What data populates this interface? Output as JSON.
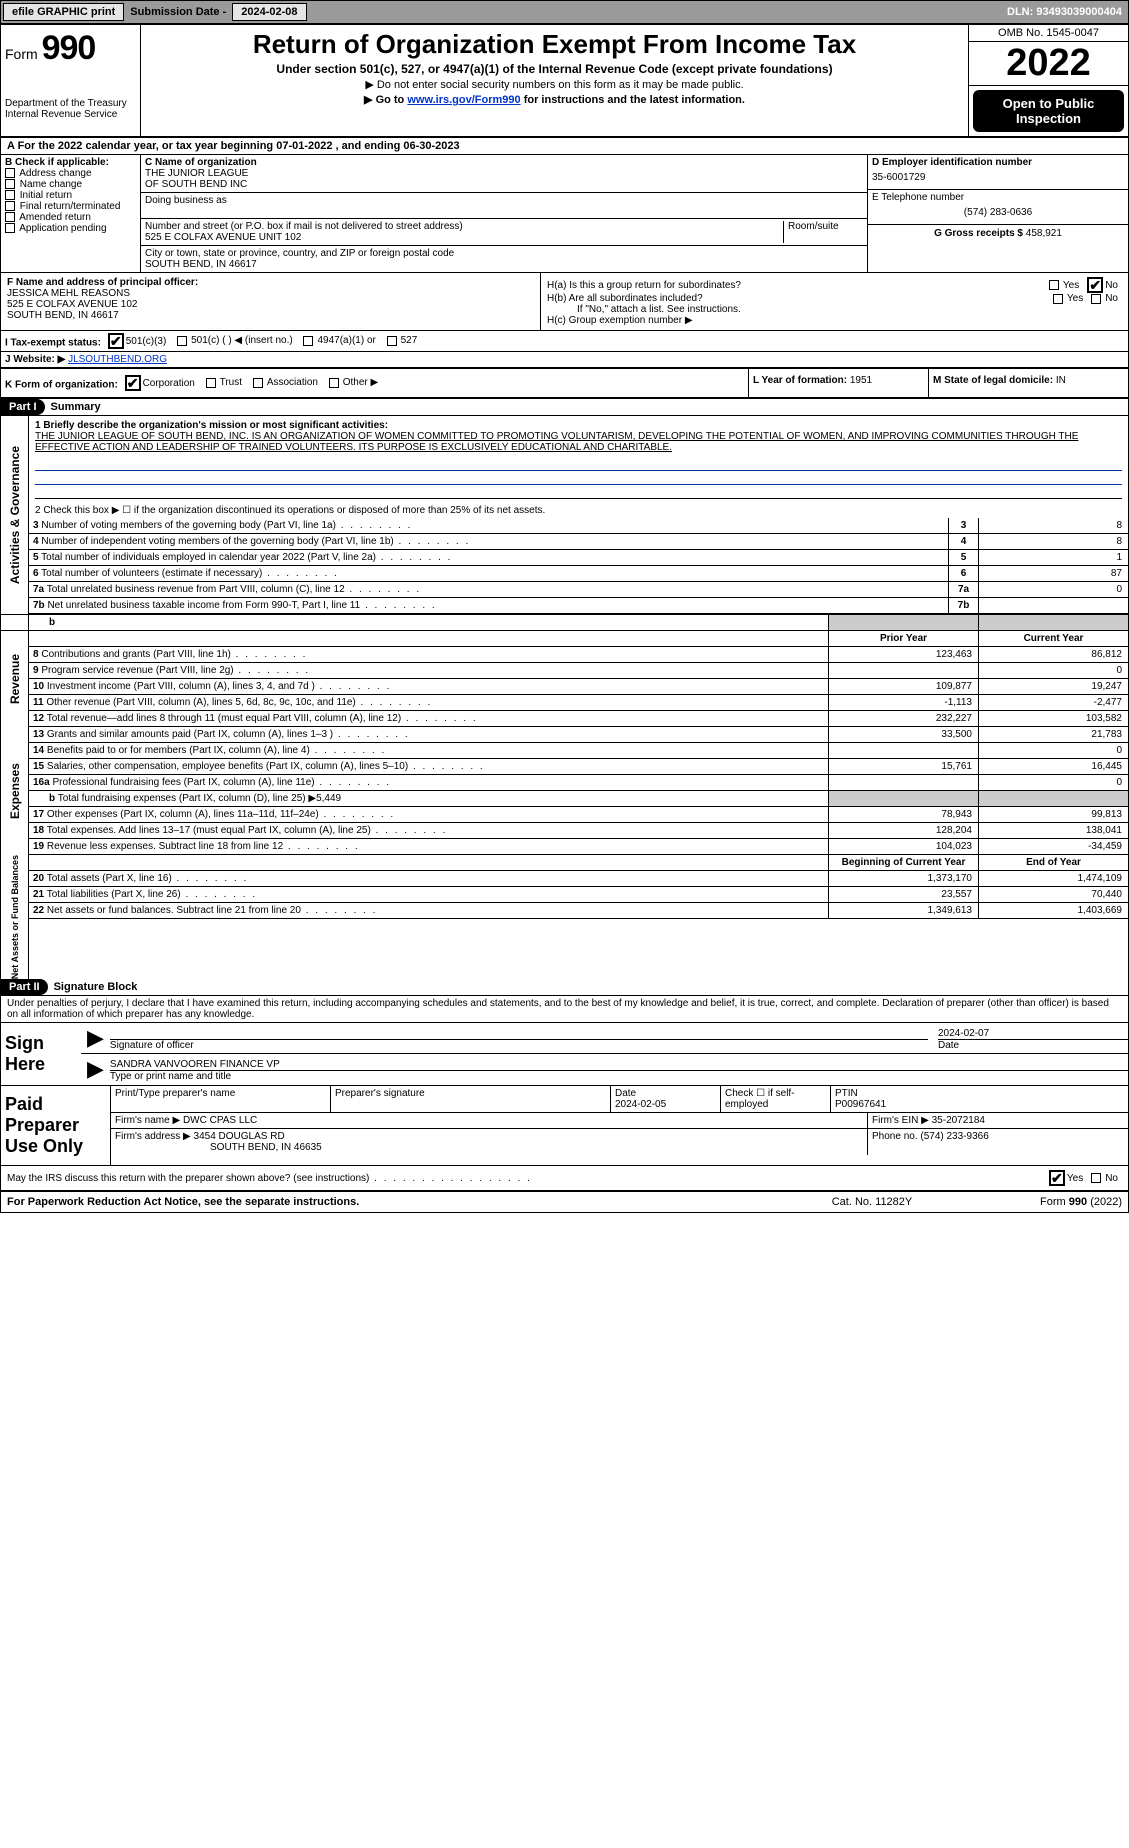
{
  "topbar": {
    "efile": "efile GRAPHIC print",
    "submission_label": "Submission Date - ",
    "submission_date": "2024-02-08",
    "dln_label": "DLN: ",
    "dln": "93493039000404"
  },
  "header": {
    "form_prefix": "Form",
    "form_number": "990",
    "title": "Return of Organization Exempt From Income Tax",
    "subtitle": "Under section 501(c), 527, or 4947(a)(1) of the Internal Revenue Code (except private foundations)",
    "note1": "▶ Do not enter social security numbers on this form as it may be made public.",
    "note2_pre": "▶ Go to ",
    "note2_link": "www.irs.gov/Form990",
    "note2_post": " for instructions and the latest information.",
    "dept": "Department of the Treasury",
    "irs": "Internal Revenue Service",
    "omb": "OMB No. 1545-0047",
    "year": "2022",
    "open": "Open to Public Inspection"
  },
  "period": {
    "text_pre": "A For the 2022 calendar year, or tax year beginning ",
    "begin": "07-01-2022",
    "mid": "   , and ending ",
    "end": "06-30-2023"
  },
  "boxB": {
    "title": "B Check if applicable:",
    "items": [
      "Address change",
      "Name change",
      "Initial return",
      "Final return/terminated",
      "Amended return",
      "Application pending"
    ]
  },
  "boxC": {
    "name_label": "C Name of organization",
    "name1": "THE JUNIOR LEAGUE",
    "name2": "OF SOUTH BEND INC",
    "dba_label": "Doing business as",
    "addr_label": "Number and street (or P.O. box if mail is not delivered to street address)",
    "room_label": "Room/suite",
    "addr": "525 E COLFAX AVENUE UNIT 102",
    "city_label": "City or town, state or province, country, and ZIP or foreign postal code",
    "city": "SOUTH BEND, IN  46617"
  },
  "boxD": {
    "label": "D Employer identification number",
    "ein": "35-6001729",
    "phone_label": "E Telephone number",
    "phone": "(574) 283-0636",
    "gross_label": "G Gross receipts $ ",
    "gross": "458,921"
  },
  "boxF": {
    "label": "F  Name and address of principal officer:",
    "name": "JESSICA MEHL REASONS",
    "addr1": "525 E COLFAX AVENUE 102",
    "addr2": "SOUTH BEND, IN  46617"
  },
  "boxH": {
    "a_label": "H(a)  Is this a group return for subordinates?",
    "b_label": "H(b)  Are all subordinates included?",
    "ifno": "If \"No,\" attach a list. See instructions.",
    "c_label": "H(c)  Group exemption number ▶",
    "yes": "Yes",
    "no": "No"
  },
  "boxI": {
    "label": "I    Tax-exempt status:",
    "opts": [
      "501(c)(3)",
      "501(c) (  ) ◀ (insert no.)",
      "4947(a)(1) or",
      "527"
    ]
  },
  "boxJ": {
    "label": "J    Website: ▶ ",
    "val": "JLSOUTHBEND.ORG"
  },
  "boxK": {
    "label": "K Form of organization:",
    "opts": [
      "Corporation",
      "Trust",
      "Association",
      "Other ▶"
    ]
  },
  "boxL": {
    "label": "L Year of formation: ",
    "val": "1951"
  },
  "boxM": {
    "label": "M State of legal domicile: ",
    "val": "IN"
  },
  "part1": {
    "hdr": "Part I",
    "title": "Summary",
    "line1_label": "1  Briefly describe the organization's mission or most significant activities:",
    "line1_text": "THE JUNIOR LEAGUE OF SOUTH BEND, INC. IS AN ORGANIZATION OF WOMEN COMMITTED TO PROMOTING VOLUNTARISM, DEVELOPING THE POTENTIAL OF WOMEN, AND IMPROVING COMMUNITIES THROUGH THE EFFECTIVE ACTION AND LEADERSHIP OF TRAINED VOLUNTEERS. ITS PURPOSE IS EXCLUSIVELY EDUCATIONAL AND CHARITABLE.",
    "line2": "2   Check this box ▶ ☐  if the organization discontinued its operations or disposed of more than 25% of its net assets.",
    "governance": [
      {
        "n": "3",
        "t": "Number of voting members of the governing body (Part VI, line 1a)",
        "v": "8"
      },
      {
        "n": "4",
        "t": "Number of independent voting members of the governing body (Part VI, line 1b)",
        "v": "8"
      },
      {
        "n": "5",
        "t": "Total number of individuals employed in calendar year 2022 (Part V, line 2a)",
        "v": "1"
      },
      {
        "n": "6",
        "t": "Total number of volunteers (estimate if necessary)",
        "v": "87"
      },
      {
        "n": "7a",
        "t": "Total unrelated business revenue from Part VIII, column (C), line 12",
        "v": "0"
      },
      {
        "n": "7b",
        "t": "Net unrelated business taxable income from Form 990-T, Part I, line 11",
        "v": ""
      }
    ],
    "col_hdr_prior": "Prior Year",
    "col_hdr_current": "Current Year",
    "revenue": [
      {
        "n": "8",
        "t": "Contributions and grants (Part VIII, line 1h)",
        "p": "123,463",
        "c": "86,812"
      },
      {
        "n": "9",
        "t": "Program service revenue (Part VIII, line 2g)",
        "p": "",
        "c": "0"
      },
      {
        "n": "10",
        "t": "Investment income (Part VIII, column (A), lines 3, 4, and 7d )",
        "p": "109,877",
        "c": "19,247"
      },
      {
        "n": "11",
        "t": "Other revenue (Part VIII, column (A), lines 5, 6d, 8c, 9c, 10c, and 11e)",
        "p": "-1,113",
        "c": "-2,477"
      },
      {
        "n": "12",
        "t": "Total revenue—add lines 8 through 11 (must equal Part VIII, column (A), line 12)",
        "p": "232,227",
        "c": "103,582"
      }
    ],
    "expenses": [
      {
        "n": "13",
        "t": "Grants and similar amounts paid (Part IX, column (A), lines 1–3 )",
        "p": "33,500",
        "c": "21,783"
      },
      {
        "n": "14",
        "t": "Benefits paid to or for members (Part IX, column (A), line 4)",
        "p": "",
        "c": "0"
      },
      {
        "n": "15",
        "t": "Salaries, other compensation, employee benefits (Part IX, column (A), lines 5–10)",
        "p": "15,761",
        "c": "16,445"
      },
      {
        "n": "16a",
        "t": "Professional fundraising fees (Part IX, column (A), line 11e)",
        "p": "",
        "c": "0"
      },
      {
        "n": "b",
        "t": "Total fundraising expenses (Part IX, column (D), line 25) ▶5,449",
        "grey": true
      },
      {
        "n": "17",
        "t": "Other expenses (Part IX, column (A), lines 11a–11d, 11f–24e)",
        "p": "78,943",
        "c": "99,813"
      },
      {
        "n": "18",
        "t": "Total expenses. Add lines 13–17 (must equal Part IX, column (A), line 25)",
        "p": "128,204",
        "c": "138,041"
      },
      {
        "n": "19",
        "t": "Revenue less expenses. Subtract line 18 from line 12",
        "p": "104,023",
        "c": "-34,459"
      }
    ],
    "col_hdr_begin": "Beginning of Current Year",
    "col_hdr_end": "End of Year",
    "netassets": [
      {
        "n": "20",
        "t": "Total assets (Part X, line 16)",
        "p": "1,373,170",
        "c": "1,474,109"
      },
      {
        "n": "21",
        "t": "Total liabilities (Part X, line 26)",
        "p": "23,557",
        "c": "70,440"
      },
      {
        "n": "22",
        "t": "Net assets or fund balances. Subtract line 21 from line 20",
        "p": "1,349,613",
        "c": "1,403,669"
      }
    ],
    "side_labels": {
      "gov": "Activities & Governance",
      "rev": "Revenue",
      "exp": "Expenses",
      "net": "Net Assets or\nFund Balances"
    }
  },
  "part2": {
    "hdr": "Part II",
    "title": "Signature Block",
    "perjury": "Under penalties of perjury, I declare that I have examined this return, including accompanying schedules and statements, and to the best of my knowledge and belief, it is true, correct, and complete. Declaration of preparer (other than officer) is based on all information of which preparer has any knowledge.",
    "sign_here": "Sign Here",
    "sig_officer": "Signature of officer",
    "sig_date": "2024-02-07",
    "date_label": "Date",
    "officer_name": "SANDRA VANVOOREN  FINANCE VP",
    "type_label": "Type or print name and title"
  },
  "paid": {
    "title": "Paid Preparer Use Only",
    "h1": "Print/Type preparer's name",
    "h2": "Preparer's signature",
    "h3_label": "Date",
    "h3_val": "2024-02-05",
    "h4": "Check ☐ if self-employed",
    "h5_label": "PTIN",
    "h5_val": "P00967641",
    "firm_name_label": "Firm's name    ▶ ",
    "firm_name": "DWC CPAS LLC",
    "firm_ein_label": "Firm's EIN ▶ ",
    "firm_ein": "35-2072184",
    "firm_addr_label": "Firm's address ▶ ",
    "firm_addr1": "3454 DOUGLAS RD",
    "firm_addr2": "SOUTH BEND, IN  46635",
    "firm_phone_label": "Phone no. ",
    "firm_phone": "(574) 233-9366"
  },
  "discuss": {
    "text": "May the IRS discuss this return with the preparer shown above? (see instructions)",
    "yes": "Yes",
    "no": "No"
  },
  "footer": {
    "left": "For Paperwork Reduction Act Notice, see the separate instructions.",
    "mid": "Cat. No. 11282Y",
    "right_pre": "Form ",
    "right_form": "990",
    "right_post": " (2022)"
  }
}
